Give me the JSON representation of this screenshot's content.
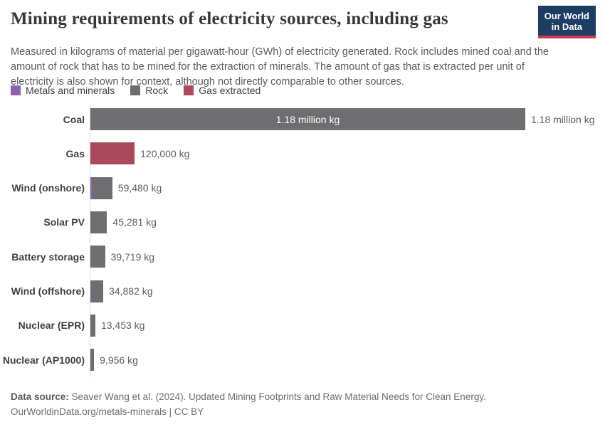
{
  "header": {
    "title": "Mining requirements of electricity sources, including gas",
    "subtitle": "Measured in kilograms of material per gigawatt-hour (GWh) of electricity generated. Rock includes mined coal and the amount of rock that has to be mined for the extraction of minerals. The amount of gas that is extracted per unit of electricity is also shown for context, although not directly comparable to other sources.",
    "logo": {
      "line1": "Our World",
      "line2": "in Data",
      "bg_color": "#1d3d63",
      "accent_color": "#cc3b4d"
    }
  },
  "legend": {
    "items": [
      {
        "label": "Metals and minerals",
        "color": "#8d64ac"
      },
      {
        "label": "Rock",
        "color": "#6e6e71"
      },
      {
        "label": "Gas extracted",
        "color": "#a9495b"
      }
    ]
  },
  "colors": {
    "series": {
      "Metals and minerals": "#8d64ac",
      "Rock": "#6e6e71",
      "Gas extracted": "#a9495b"
    },
    "axis": "#dadada"
  },
  "chart_data": {
    "type": "bar",
    "orientation": "horizontal",
    "title": "Mining requirements of electricity sources, including gas",
    "xlabel": "",
    "ylabel": "",
    "unit": "kg per GWh",
    "xlim": [
      0,
      1180000
    ],
    "grid": false,
    "legend_position": "top-left",
    "series_names": [
      "Metals and minerals",
      "Rock",
      "Gas extracted"
    ],
    "categories": [
      "Coal",
      "Gas",
      "Wind (onshore)",
      "Solar PV",
      "Battery storage",
      "Wind (offshore)",
      "Nuclear (EPR)",
      "Nuclear (AP1000)"
    ],
    "bars": [
      {
        "category": "Coal",
        "total": 1180000,
        "value_label": "1.18 million kg",
        "inside_label": "1.18 million kg",
        "segments": [
          {
            "series": "Rock",
            "value": 1180000
          }
        ]
      },
      {
        "category": "Gas",
        "total": 120000,
        "value_label": "120,000 kg",
        "segments": [
          {
            "series": "Gas extracted",
            "value": 120000
          }
        ]
      },
      {
        "category": "Wind (onshore)",
        "total": 59480,
        "value_label": "59,480 kg",
        "segments": [
          {
            "series": "Metals and minerals",
            "value": 3900
          },
          {
            "series": "Rock",
            "value": 55580
          }
        ]
      },
      {
        "category": "Solar PV",
        "total": 45281,
        "value_label": "45,281 kg",
        "segments": [
          {
            "series": "Metals and minerals",
            "value": 1900
          },
          {
            "series": "Rock",
            "value": 43381
          }
        ]
      },
      {
        "category": "Battery storage",
        "total": 39719,
        "value_label": "39,719 kg",
        "segments": [
          {
            "series": "Rock",
            "value": 39719
          }
        ]
      },
      {
        "category": "Wind (offshore)",
        "total": 34882,
        "value_label": "34,882 kg",
        "segments": [
          {
            "series": "Metals and minerals",
            "value": 1900
          },
          {
            "series": "Rock",
            "value": 32982
          }
        ]
      },
      {
        "category": "Nuclear (EPR)",
        "total": 13453,
        "value_label": "13,453 kg",
        "segments": [
          {
            "series": "Rock",
            "value": 13453
          }
        ]
      },
      {
        "category": "Nuclear (AP1000)",
        "total": 9956,
        "value_label": "9,956 kg",
        "segments": [
          {
            "series": "Rock",
            "value": 9956
          }
        ]
      }
    ]
  },
  "footer": {
    "source_label": "Data source:",
    "source_text": " Seaver Wang et al. (2024). Updated Mining Footprints and Raw Material Needs for Clean Energy.",
    "link_text": "OurWorldinData.org/metals-minerals | CC BY"
  }
}
